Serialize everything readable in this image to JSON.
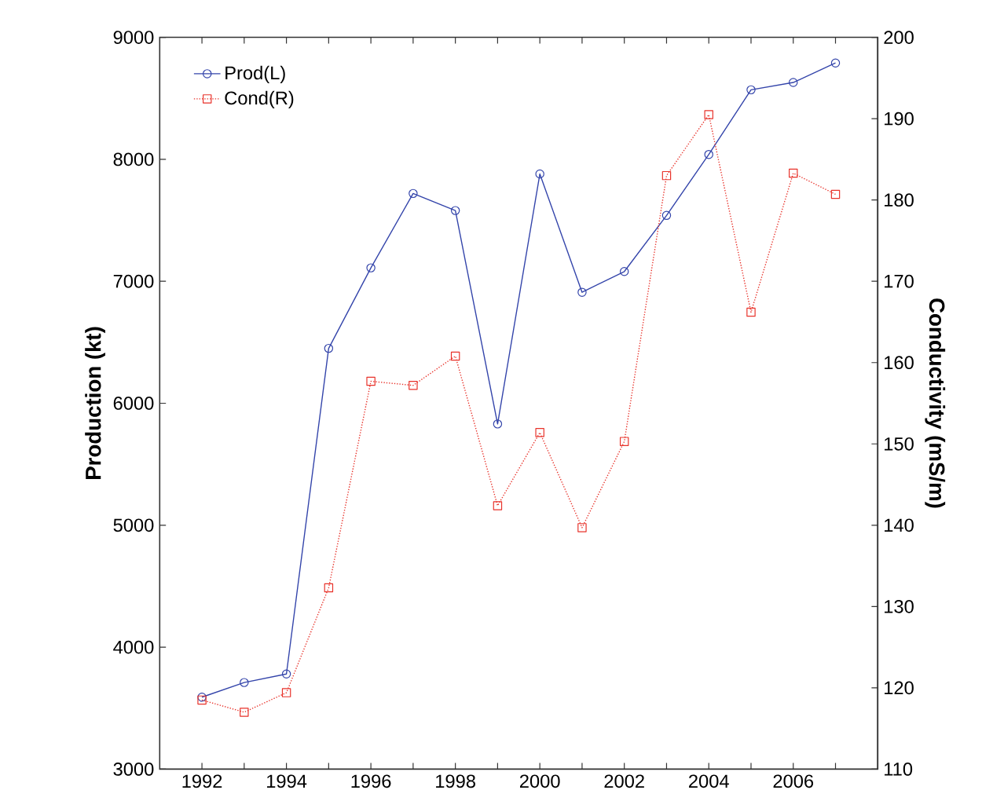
{
  "chart_data": {
    "type": "line",
    "ylabel": "Production (kt)",
    "y2label": "Conductivity (mS/m)",
    "x": [
      1992,
      1993,
      1994,
      1995,
      1996,
      1997,
      1998,
      1999,
      2000,
      2001,
      2002,
      2003,
      2004,
      2005,
      2006,
      2007
    ],
    "xlim": [
      1991,
      2008
    ],
    "xticks": [
      1992,
      {
        "value": 1993,
        "label": null
      },
      1994,
      {
        "value": 1995,
        "label": null
      },
      1996,
      {
        "value": 1997,
        "label": null
      },
      1998,
      {
        "value": 1999,
        "label": null
      },
      2000,
      {
        "value": 2001,
        "label": null
      },
      2002,
      {
        "value": 2003,
        "label": null
      },
      2004,
      {
        "value": 2005,
        "label": null
      },
      2006,
      {
        "value": 2007,
        "label": null
      }
    ],
    "ylim": [
      3000,
      9000
    ],
    "yticks": [
      3000,
      4000,
      5000,
      6000,
      7000,
      8000,
      9000
    ],
    "y2lim": [
      110,
      200
    ],
    "y2ticks": [
      110,
      120,
      130,
      140,
      150,
      160,
      170,
      180,
      190,
      200
    ],
    "series": [
      {
        "name": "Prod(L)",
        "color": "#3344aa",
        "marker": "circle",
        "line_style": "solid",
        "values": [
          3590,
          3710,
          3780,
          6450,
          7110,
          7720,
          7580,
          5830,
          7880,
          6910,
          7080,
          7540,
          8040,
          8570,
          8630,
          8790
        ]
      },
      {
        "name": "Cond(R)",
        "color": "#e8322a",
        "marker": "square",
        "line_style": "dotted",
        "axis": "y2",
        "values": [
          118.5,
          117.0,
          119.4,
          132.3,
          157.7,
          157.2,
          160.8,
          142.4,
          151.4,
          139.7,
          150.3,
          183.0,
          190.5,
          166.2,
          183.3,
          180.7
        ]
      }
    ],
    "grid": false,
    "legend": "top left"
  }
}
